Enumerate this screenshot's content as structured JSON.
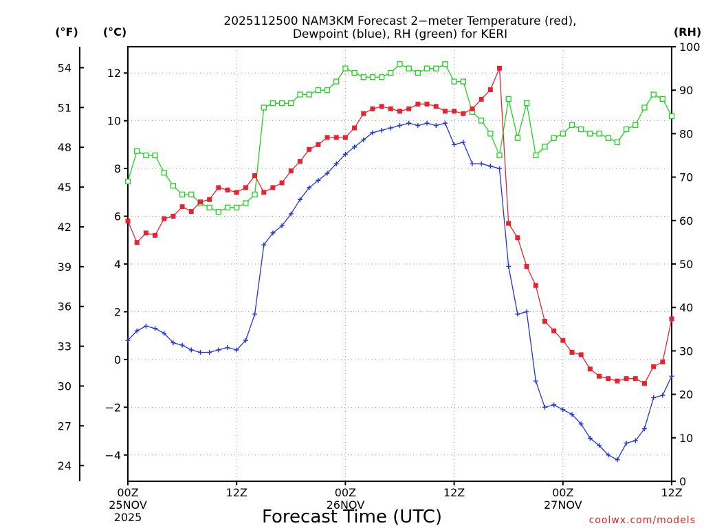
{
  "chart_data": {
    "type": "line",
    "title": "2025112500 NAM3KM Forecast 2-meter Temperature (red), Dewpoint (blue), RH (green) for KERI",
    "title_lines": [
      "2025112500 NAM3KM Forecast 2−meter Temperature (red),",
      "Dewpoint (blue), RH (green) for KERI"
    ],
    "xlabel": "Forecast Time (UTC)",
    "credit": "coolwx.com/models",
    "units": {
      "fahrenheit": "(°F)",
      "celsius": "(°C)",
      "rh": "(RH)"
    },
    "x_ticks": [
      {
        "hour": 0,
        "lines": [
          "00Z",
          "25NOV",
          "2025"
        ]
      },
      {
        "hour": 12,
        "lines": [
          "12Z"
        ]
      },
      {
        "hour": 24,
        "lines": [
          "00Z",
          "26NOV"
        ]
      },
      {
        "hour": 36,
        "lines": [
          "12Z"
        ]
      },
      {
        "hour": 48,
        "lines": [
          "00Z",
          "27NOV"
        ]
      },
      {
        "hour": 60,
        "lines": [
          "12Z"
        ]
      }
    ],
    "x_range": [
      0,
      60
    ],
    "celsius_ticks": [
      "12",
      "10",
      "8",
      "6",
      "4",
      "2",
      "0",
      "−2",
      "−4"
    ],
    "celsius_tick_values": [
      12,
      10,
      8,
      6,
      4,
      2,
      0,
      -2,
      -4
    ],
    "celsius_range": [
      -5.1,
      13.1
    ],
    "fahrenheit_ticks": [
      "54",
      "51",
      "48",
      "45",
      "42",
      "39",
      "36",
      "33",
      "30",
      "27",
      "24"
    ],
    "fahrenheit_tick_values": [
      54,
      51,
      48,
      45,
      42,
      39,
      36,
      33,
      30,
      27,
      24
    ],
    "rh_ticks": [
      "100",
      "90",
      "80",
      "70",
      "60",
      "50",
      "40",
      "30",
      "20",
      "10",
      "0"
    ],
    "rh_tick_values": [
      100,
      90,
      80,
      70,
      60,
      50,
      40,
      30,
      20,
      10,
      0
    ],
    "rh_range": [
      0,
      100
    ],
    "colors": {
      "temperature": "#e8232f",
      "dewpoint": "#1f33e0",
      "rh": "#1ed31e",
      "grid": "#9a9a9a"
    },
    "series": [
      {
        "name": "Temperature (red)",
        "unit": "C",
        "values": [
          [
            0,
            5.8
          ],
          [
            1,
            4.9
          ],
          [
            2,
            5.3
          ],
          [
            3,
            5.2
          ],
          [
            4,
            5.9
          ],
          [
            5,
            6.0
          ],
          [
            6,
            6.4
          ],
          [
            7,
            6.2
          ],
          [
            8,
            6.6
          ],
          [
            9,
            6.7
          ],
          [
            10,
            7.2
          ],
          [
            11,
            7.1
          ],
          [
            12,
            7.0
          ],
          [
            13,
            7.2
          ],
          [
            14,
            7.7
          ],
          [
            15,
            7.0
          ],
          [
            16,
            7.2
          ],
          [
            17,
            7.4
          ],
          [
            18,
            7.9
          ],
          [
            19,
            8.3
          ],
          [
            20,
            8.8
          ],
          [
            21,
            9.0
          ],
          [
            22,
            9.3
          ],
          [
            23,
            9.3
          ],
          [
            24,
            9.3
          ],
          [
            25,
            9.7
          ],
          [
            26,
            10.3
          ],
          [
            27,
            10.5
          ],
          [
            28,
            10.6
          ],
          [
            29,
            10.5
          ],
          [
            30,
            10.4
          ],
          [
            31,
            10.5
          ],
          [
            32,
            10.7
          ],
          [
            33,
            10.7
          ],
          [
            34,
            10.6
          ],
          [
            35,
            10.4
          ],
          [
            36,
            10.4
          ],
          [
            37,
            10.3
          ],
          [
            38,
            10.5
          ],
          [
            39,
            10.9
          ],
          [
            40,
            11.3
          ],
          [
            41,
            12.2
          ],
          [
            42,
            5.7
          ],
          [
            43,
            5.1
          ],
          [
            44,
            3.9
          ],
          [
            45,
            3.1
          ],
          [
            46,
            1.6
          ],
          [
            47,
            1.2
          ],
          [
            48,
            0.8
          ],
          [
            49,
            0.3
          ],
          [
            50,
            0.2
          ],
          [
            51,
            -0.4
          ],
          [
            52,
            -0.7
          ],
          [
            53,
            -0.8
          ],
          [
            54,
            -0.9
          ],
          [
            55,
            -0.8
          ],
          [
            56,
            -0.8
          ],
          [
            57,
            -1.0
          ],
          [
            58,
            -0.3
          ],
          [
            59,
            -0.1
          ],
          [
            60,
            1.7
          ]
        ]
      },
      {
        "name": "Dewpoint (blue)",
        "unit": "C",
        "values": [
          [
            0,
            0.8
          ],
          [
            1,
            1.2
          ],
          [
            2,
            1.4
          ],
          [
            3,
            1.3
          ],
          [
            4,
            1.1
          ],
          [
            5,
            0.7
          ],
          [
            6,
            0.6
          ],
          [
            7,
            0.4
          ],
          [
            8,
            0.3
          ],
          [
            9,
            0.3
          ],
          [
            10,
            0.4
          ],
          [
            11,
            0.5
          ],
          [
            12,
            0.4
          ],
          [
            13,
            0.8
          ],
          [
            14,
            1.9
          ],
          [
            15,
            4.8
          ],
          [
            16,
            5.3
          ],
          [
            17,
            5.6
          ],
          [
            18,
            6.1
          ],
          [
            19,
            6.7
          ],
          [
            20,
            7.2
          ],
          [
            21,
            7.5
          ],
          [
            22,
            7.8
          ],
          [
            23,
            8.2
          ],
          [
            24,
            8.6
          ],
          [
            25,
            8.9
          ],
          [
            26,
            9.2
          ],
          [
            27,
            9.5
          ],
          [
            28,
            9.6
          ],
          [
            29,
            9.7
          ],
          [
            30,
            9.8
          ],
          [
            31,
            9.9
          ],
          [
            32,
            9.8
          ],
          [
            33,
            9.9
          ],
          [
            34,
            9.8
          ],
          [
            35,
            9.9
          ],
          [
            36,
            9.0
          ],
          [
            37,
            9.1
          ],
          [
            38,
            8.2
          ],
          [
            39,
            8.2
          ],
          [
            40,
            8.1
          ],
          [
            41,
            8.0
          ],
          [
            42,
            3.9
          ],
          [
            43,
            1.9
          ],
          [
            44,
            2.0
          ],
          [
            45,
            -0.9
          ],
          [
            46,
            -2.0
          ],
          [
            47,
            -1.9
          ],
          [
            48,
            -2.1
          ],
          [
            49,
            -2.3
          ],
          [
            50,
            -2.7
          ],
          [
            51,
            -3.3
          ],
          [
            52,
            -3.6
          ],
          [
            53,
            -4.0
          ],
          [
            54,
            -4.2
          ],
          [
            55,
            -3.5
          ],
          [
            56,
            -3.4
          ],
          [
            57,
            -2.9
          ],
          [
            58,
            -1.6
          ],
          [
            59,
            -1.5
          ],
          [
            60,
            -0.7
          ]
        ]
      },
      {
        "name": "RH (green)",
        "unit": "%",
        "values": [
          [
            0,
            69
          ],
          [
            1,
            76
          ],
          [
            2,
            75
          ],
          [
            3,
            75
          ],
          [
            4,
            71
          ],
          [
            5,
            68
          ],
          [
            6,
            66
          ],
          [
            7,
            66
          ],
          [
            8,
            64
          ],
          [
            9,
            63
          ],
          [
            10,
            62
          ],
          [
            11,
            63
          ],
          [
            12,
            63
          ],
          [
            13,
            64
          ],
          [
            14,
            66
          ],
          [
            15,
            86
          ],
          [
            16,
            87
          ],
          [
            17,
            87
          ],
          [
            18,
            87
          ],
          [
            19,
            89
          ],
          [
            20,
            89
          ],
          [
            21,
            90
          ],
          [
            22,
            90
          ],
          [
            23,
            92
          ],
          [
            24,
            95
          ],
          [
            25,
            94
          ],
          [
            26,
            93
          ],
          [
            27,
            93
          ],
          [
            28,
            93
          ],
          [
            29,
            94
          ],
          [
            30,
            96
          ],
          [
            31,
            95
          ],
          [
            32,
            94
          ],
          [
            33,
            95
          ],
          [
            34,
            95
          ],
          [
            35,
            96
          ],
          [
            36,
            92
          ],
          [
            37,
            92
          ],
          [
            38,
            85
          ],
          [
            39,
            83
          ],
          [
            40,
            80
          ],
          [
            41,
            75
          ],
          [
            42,
            88
          ],
          [
            43,
            79
          ],
          [
            44,
            87
          ],
          [
            45,
            75
          ],
          [
            46,
            77
          ],
          [
            47,
            79
          ],
          [
            48,
            80
          ],
          [
            49,
            82
          ],
          [
            50,
            81
          ],
          [
            51,
            80
          ],
          [
            52,
            80
          ],
          [
            53,
            79
          ],
          [
            54,
            78
          ],
          [
            55,
            81
          ],
          [
            56,
            82
          ],
          [
            57,
            86
          ],
          [
            58,
            89
          ],
          [
            59,
            88
          ],
          [
            60,
            84
          ]
        ]
      }
    ]
  }
}
